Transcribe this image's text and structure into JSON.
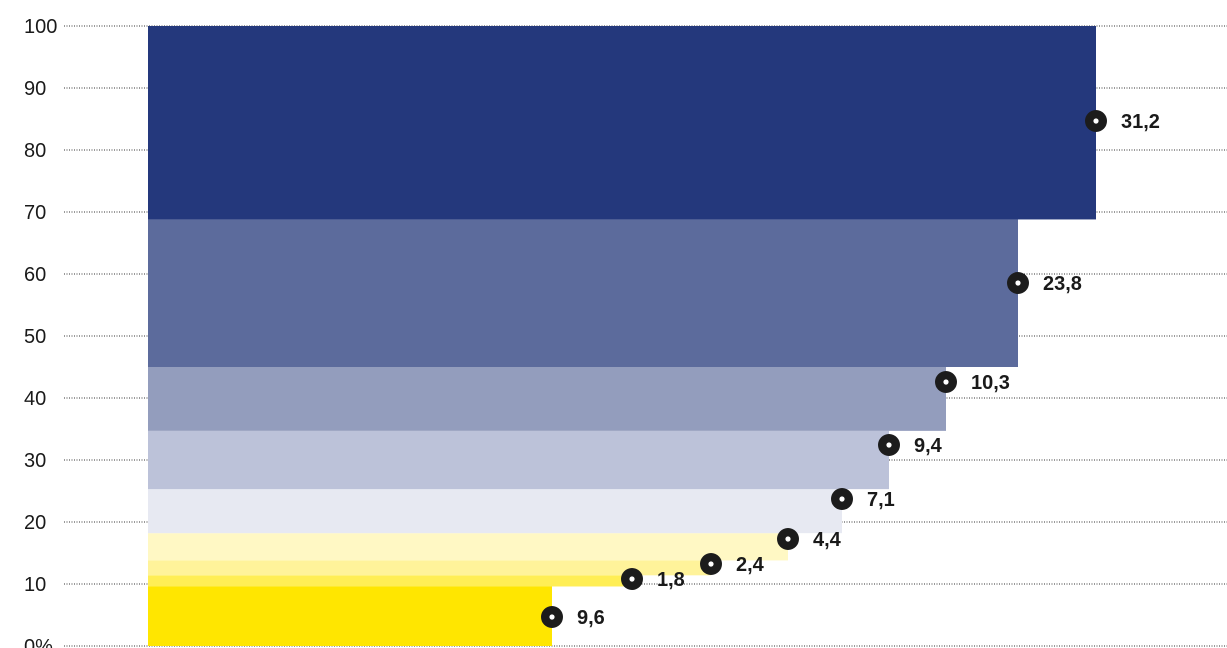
{
  "chart_data": {
    "type": "bar",
    "subtype": "stacked-staircase",
    "title": "",
    "xlabel": "",
    "ylabel": "",
    "ylim": [
      0,
      100
    ],
    "y_ticks": [
      "0%",
      "10",
      "20",
      "30",
      "40",
      "50",
      "60",
      "70",
      "80",
      "90",
      "100"
    ],
    "grid": true,
    "legend": "none",
    "segments": [
      {
        "label": "9,6",
        "value": 9.6,
        "color": "#FFE600"
      },
      {
        "label": "1,8",
        "value": 1.8,
        "color": "#FFEE55"
      },
      {
        "label": "2,4",
        "value": 2.4,
        "color": "#FFF39A"
      },
      {
        "label": "4,4",
        "value": 4.4,
        "color": "#FFF8C4"
      },
      {
        "label": "7,1",
        "value": 7.1,
        "color": "#E7E9F2"
      },
      {
        "label": "9,4",
        "value": 9.4,
        "color": "#BCC2D9"
      },
      {
        "label": "10,3",
        "value": 10.3,
        "color": "#939DBD"
      },
      {
        "label": "23,8",
        "value": 23.8,
        "color": "#5C6B9C"
      },
      {
        "label": "31,2",
        "value": 31.2,
        "color": "#24387C"
      }
    ]
  }
}
